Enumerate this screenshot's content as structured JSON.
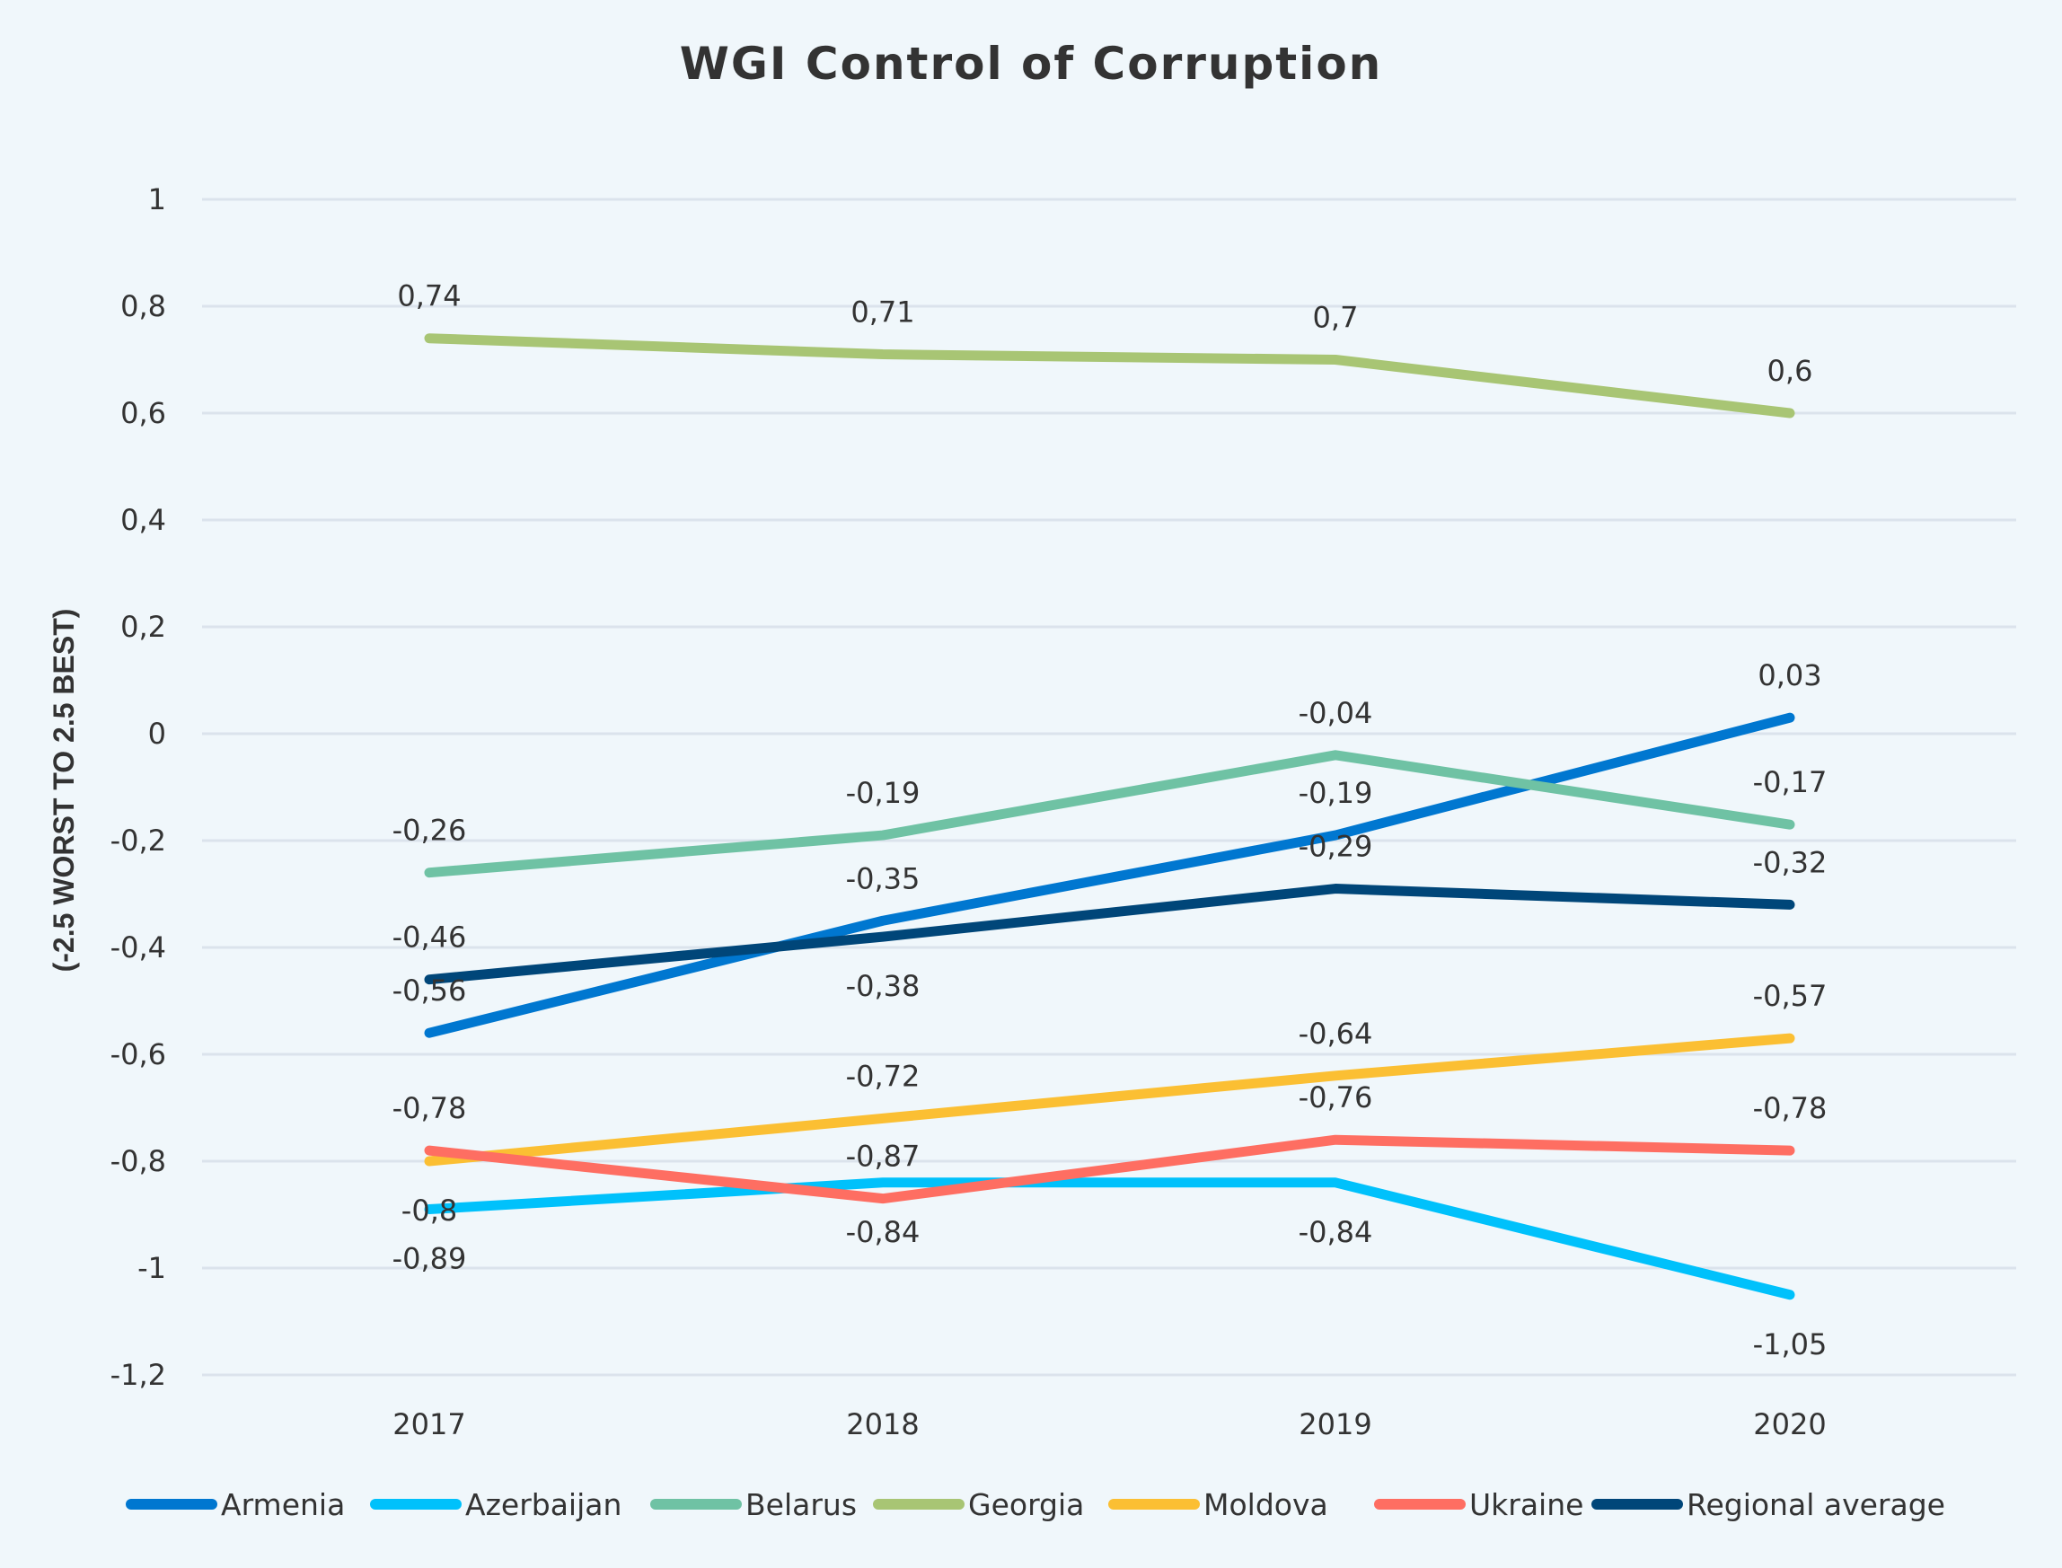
{
  "chart_data": {
    "type": "line",
    "title": "WGI Control of Corruption",
    "xlabel": "",
    "ylabel": "(-2.5 WORST TO 2.5 BEST)",
    "categories": [
      "2017",
      "2018",
      "2019",
      "2020"
    ],
    "ylim": [
      -1.2,
      1
    ],
    "yticks": [
      1,
      0.8,
      0.6,
      0.4,
      0.2,
      0,
      -0.2,
      -0.4,
      -0.6,
      -0.8,
      -1,
      -1.2
    ],
    "ytick_labels": [
      "1",
      "0,8",
      "0,6",
      "0,4",
      "0,2",
      "0",
      "-0,2",
      "-0,4",
      "-0,6",
      "-0,8",
      "-1",
      "-1,2"
    ],
    "grid": true,
    "legend_position": "bottom",
    "series": [
      {
        "name": "Armenia",
        "color": "#0077d0",
        "values": [
          -0.56,
          -0.35,
          -0.19,
          0.03
        ],
        "labels": [
          "-0,56",
          "-0,35",
          "-0,19",
          "0,03"
        ],
        "label_pos": [
          "above",
          "above",
          "above",
          "above"
        ]
      },
      {
        "name": "Azerbaijan",
        "color": "#00c1fb",
        "values": [
          -0.89,
          -0.84,
          -0.84,
          -1.05
        ],
        "labels": [
          "-0,89",
          "-0,84",
          "-0,84",
          "-1,05"
        ],
        "label_pos": [
          "below",
          "below",
          "below",
          "below"
        ]
      },
      {
        "name": "Belarus",
        "color": "#6fc2a4",
        "values": [
          -0.26,
          -0.19,
          -0.04,
          -0.17
        ],
        "labels": [
          "-0,26",
          "-0,19",
          "-0,04",
          "-0,17"
        ],
        "label_pos": [
          "above",
          "above",
          "above",
          "above"
        ]
      },
      {
        "name": "Georgia",
        "color": "#a8c574",
        "values": [
          0.74,
          0.71,
          0.7,
          0.6
        ],
        "labels": [
          "0,74",
          "0,71",
          "0,7",
          "0,6"
        ],
        "label_pos": [
          "above",
          "above",
          "above",
          "above"
        ]
      },
      {
        "name": "Moldova",
        "color": "#fbbf33",
        "values": [
          -0.8,
          -0.72,
          -0.64,
          -0.57
        ],
        "labels": [
          "-0,8",
          "-0,72",
          "-0,64",
          "-0,57"
        ],
        "label_pos": [
          "below",
          "above",
          "above",
          "above"
        ]
      },
      {
        "name": "Ukraine",
        "color": "#fe6e62",
        "values": [
          -0.78,
          -0.87,
          -0.76,
          -0.78
        ],
        "labels": [
          "-0,78",
          "-0,87",
          "-0,76",
          "-0,78"
        ],
        "label_pos": [
          "above",
          "above",
          "above",
          "above"
        ]
      },
      {
        "name": "Regional average",
        "color": "#004679",
        "values": [
          -0.46,
          -0.38,
          -0.29,
          -0.32
        ],
        "labels": [
          "-0,46",
          "-0,38",
          "-0,29",
          "-0,32"
        ],
        "label_pos": [
          "above",
          "below",
          "above",
          "above"
        ]
      }
    ]
  }
}
